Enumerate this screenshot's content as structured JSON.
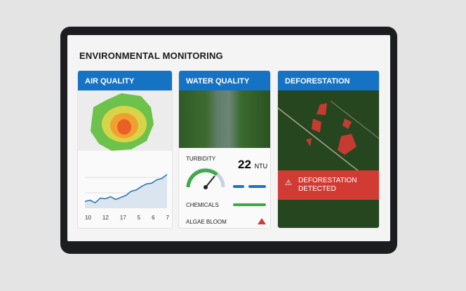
{
  "title": "ENVIRONMENTAL MONITORING",
  "air": {
    "header": "AIR QUALITY",
    "x_labels": [
      "10",
      "12",
      "17",
      "5",
      "6",
      "7"
    ],
    "trend": [
      40,
      42,
      38,
      45,
      44,
      47,
      43,
      46,
      49,
      55,
      57,
      62,
      66,
      67,
      72,
      74,
      80
    ]
  },
  "water": {
    "header": "WATER QUALITY",
    "turbidity_label": "TURBIDITY",
    "turbidity_value": "22",
    "turbidity_unit": "NTU",
    "gauge_fraction": 0.75,
    "chemicals_label": "CHEMICALS",
    "algae_label": "ALGAE BLOOM"
  },
  "deforestation": {
    "header": "DEFORESTATION",
    "alert_line1": "DEFORESTATION",
    "alert_line2": "DETECTED"
  },
  "colors": {
    "accent": "#1673c4",
    "alert": "#d23b33",
    "good": "#3daa48"
  }
}
